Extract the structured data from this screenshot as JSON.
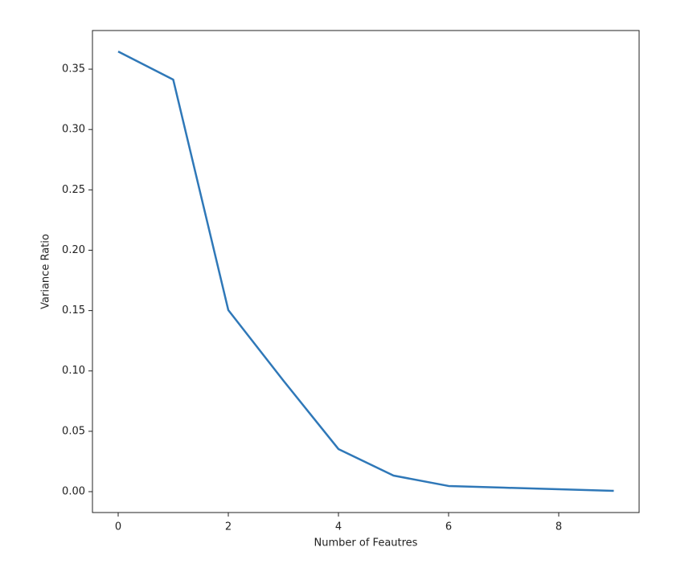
{
  "chart_data": {
    "type": "line",
    "x_label": "Number of Feautres",
    "y_label": "Variance Ratio",
    "x": [
      0,
      1,
      2,
      3,
      4,
      5,
      6,
      7,
      8,
      9
    ],
    "series": [
      {
        "color": "#2f78b8",
        "values": [
          0.3646,
          0.3413,
          0.1504,
          0.092,
          0.0353,
          0.0133,
          0.0047,
          0.0033,
          0.002,
          0.0007
        ]
      }
    ],
    "xlim": [
      -0.467,
      9.46
    ],
    "ylim": [
      -0.0173,
      0.382
    ],
    "xticks": [
      0,
      2,
      4,
      6,
      8
    ],
    "yticks": [
      {
        "value": 0,
        "label": "0.00"
      },
      {
        "value": 0.05,
        "label": "0.05"
      },
      {
        "value": 0.1,
        "label": "0.10"
      },
      {
        "value": 0.15,
        "label": "0.15"
      },
      {
        "value": 0.2,
        "label": "0.20"
      },
      {
        "value": 0.25,
        "label": "0.25"
      },
      {
        "value": 0.3,
        "label": "0.30"
      },
      {
        "value": 0.35,
        "label": "0.35"
      }
    ]
  }
}
